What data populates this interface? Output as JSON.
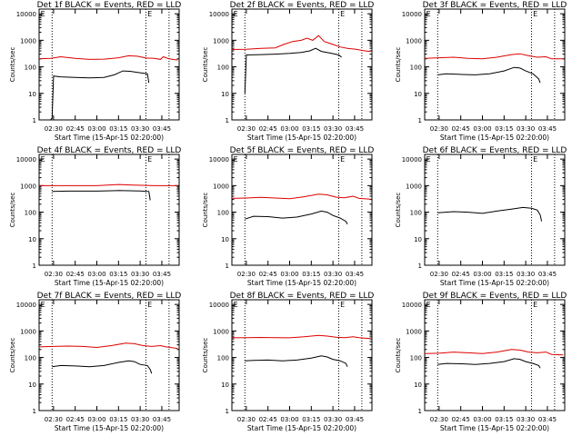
{
  "figure": {
    "xticks": [
      "02:30",
      "02:45",
      "03:00",
      "03:15",
      "03:30",
      "03:45"
    ],
    "xlabel": "Start Time (15-Apr-15 02:20:00)",
    "ylabel": "Counts/sec",
    "yticks": [
      "1",
      "10",
      "100",
      "1000",
      "10000"
    ],
    "marker": "E",
    "colors": {
      "events": "#000000",
      "lld": "#dd0000"
    }
  },
  "chart_data": [
    {
      "type": "line",
      "title": "Det 1f BLACK = Events, RED = LLD",
      "xlabel": "Start Time (15-Apr-15 02:20:00)",
      "ylabel": "Counts/sec",
      "x_unit": "minutes after 02:20",
      "xlim": [
        0,
        97
      ],
      "ylim": [
        1,
        15000
      ],
      "ylog": true,
      "dotted_vlines": [
        9,
        74,
        90
      ],
      "series": [
        {
          "name": "LLD",
          "color": "#dd0000",
          "points": [
            [
              0,
              200
            ],
            [
              8,
              210
            ],
            [
              15,
              240
            ],
            [
              25,
              210
            ],
            [
              35,
              190
            ],
            [
              45,
              195
            ],
            [
              55,
              220
            ],
            [
              62,
              260
            ],
            [
              68,
              250
            ],
            [
              74,
              215
            ],
            [
              80,
              210
            ],
            [
              84,
              190
            ],
            [
              86,
              240
            ],
            [
              90,
              200
            ],
            [
              96,
              180
            ]
          ]
        },
        {
          "name": "Events",
          "color": "#000000",
          "points": [
            [
              8,
              1
            ],
            [
              9,
              1.2
            ],
            [
              10,
              45
            ],
            [
              15,
              42
            ],
            [
              25,
              40
            ],
            [
              35,
              38
            ],
            [
              45,
              40
            ],
            [
              52,
              50
            ],
            [
              58,
              70
            ],
            [
              63,
              68
            ],
            [
              70,
              60
            ],
            [
              75,
              55
            ],
            [
              76,
              25
            ]
          ]
        }
      ]
    },
    {
      "type": "line",
      "title": "Det 2f BLACK = Events, RED = LLD",
      "xlabel": "Start Time (15-Apr-15 02:20:00)",
      "ylabel": "Counts/sec",
      "x_unit": "minutes after 02:20",
      "xlim": [
        0,
        97
      ],
      "ylim": [
        1,
        15000
      ],
      "ylog": true,
      "dotted_vlines": [
        9,
        74,
        90
      ],
      "series": [
        {
          "name": "LLD",
          "color": "#dd0000",
          "points": [
            [
              0,
              450
            ],
            [
              10,
              460
            ],
            [
              20,
              500
            ],
            [
              30,
              520
            ],
            [
              36,
              700
            ],
            [
              42,
              900
            ],
            [
              48,
              1000
            ],
            [
              52,
              1200
            ],
            [
              56,
              1000
            ],
            [
              60,
              1500
            ],
            [
              64,
              900
            ],
            [
              70,
              700
            ],
            [
              75,
              560
            ],
            [
              80,
              500
            ],
            [
              86,
              460
            ],
            [
              92,
              400
            ],
            [
              96,
              380
            ]
          ]
        },
        {
          "name": "Events",
          "color": "#000000",
          "points": [
            [
              9,
              10
            ],
            [
              10,
              280
            ],
            [
              20,
              290
            ],
            [
              30,
              300
            ],
            [
              40,
              320
            ],
            [
              48,
              350
            ],
            [
              54,
              400
            ],
            [
              58,
              500
            ],
            [
              62,
              380
            ],
            [
              68,
              330
            ],
            [
              74,
              280
            ],
            [
              76,
              230
            ]
          ]
        }
      ]
    },
    {
      "type": "line",
      "title": "Det 3f BLACK = Events, RED = LLD",
      "xlabel": "Start Time (15-Apr-15 02:20:00)",
      "ylabel": "Counts/sec",
      "x_unit": "minutes after 02:20",
      "xlim": [
        0,
        97
      ],
      "ylim": [
        1,
        15000
      ],
      "ylog": true,
      "dotted_vlines": [
        9,
        74,
        90
      ],
      "series": [
        {
          "name": "LLD",
          "color": "#dd0000",
          "points": [
            [
              0,
              210
            ],
            [
              10,
              220
            ],
            [
              20,
              230
            ],
            [
              30,
              210
            ],
            [
              40,
              200
            ],
            [
              50,
              230
            ],
            [
              60,
              290
            ],
            [
              66,
              310
            ],
            [
              72,
              260
            ],
            [
              78,
              230
            ],
            [
              84,
              240
            ],
            [
              88,
              200
            ],
            [
              96,
              200
            ]
          ]
        },
        {
          "name": "Events",
          "color": "#000000",
          "points": [
            [
              9,
              50
            ],
            [
              15,
              55
            ],
            [
              25,
              52
            ],
            [
              35,
              50
            ],
            [
              45,
              55
            ],
            [
              55,
              70
            ],
            [
              62,
              95
            ],
            [
              66,
              90
            ],
            [
              70,
              70
            ],
            [
              75,
              55
            ],
            [
              79,
              35
            ],
            [
              80,
              25
            ]
          ]
        }
      ]
    },
    {
      "type": "line",
      "title": "Det 4f BLACK = Events, RED = LLD",
      "xlabel": "Start Time (15-Apr-15 02:20:00)",
      "ylabel": "Counts/sec",
      "x_unit": "minutes after 02:20",
      "xlim": [
        0,
        97
      ],
      "ylim": [
        1,
        15000
      ],
      "ylog": true,
      "dotted_vlines": [
        9,
        74,
        90
      ],
      "series": [
        {
          "name": "LLD",
          "color": "#dd0000",
          "points": [
            [
              0,
              1000
            ],
            [
              20,
              1000
            ],
            [
              40,
              1000
            ],
            [
              55,
              1100
            ],
            [
              65,
              1050
            ],
            [
              80,
              1000
            ],
            [
              96,
              1000
            ]
          ]
        },
        {
          "name": "Events",
          "color": "#000000",
          "points": [
            [
              9,
              600
            ],
            [
              20,
              620
            ],
            [
              40,
              620
            ],
            [
              55,
              650
            ],
            [
              70,
              630
            ],
            [
              76,
              600
            ],
            [
              77,
              280
            ]
          ]
        }
      ]
    },
    {
      "type": "line",
      "title": "Det 5f BLACK = Events, RED = LLD",
      "xlabel": "Start Time (15-Apr-15 02:20:00)",
      "ylabel": "Counts/sec",
      "x_unit": "minutes after 02:20",
      "xlim": [
        0,
        97
      ],
      "ylim": [
        1,
        15000
      ],
      "ylog": true,
      "dotted_vlines": [
        9,
        74,
        90
      ],
      "series": [
        {
          "name": "LLD",
          "color": "#dd0000",
          "points": [
            [
              0,
              330
            ],
            [
              10,
              340
            ],
            [
              20,
              360
            ],
            [
              30,
              340
            ],
            [
              40,
              320
            ],
            [
              50,
              380
            ],
            [
              60,
              480
            ],
            [
              66,
              450
            ],
            [
              72,
              370
            ],
            [
              78,
              350
            ],
            [
              84,
              400
            ],
            [
              88,
              330
            ],
            [
              96,
              310
            ]
          ]
        },
        {
          "name": "Events",
          "color": "#000000",
          "points": [
            [
              9,
              55
            ],
            [
              15,
              70
            ],
            [
              25,
              68
            ],
            [
              35,
              60
            ],
            [
              45,
              65
            ],
            [
              55,
              85
            ],
            [
              62,
              110
            ],
            [
              66,
              100
            ],
            [
              70,
              75
            ],
            [
              75,
              60
            ],
            [
              79,
              45
            ],
            [
              80,
              35
            ]
          ]
        }
      ]
    },
    {
      "type": "line",
      "title": "Det 6f BLACK = Events, RED = LLD",
      "xlabel": "Start Time (15-Apr-15 02:20:00)",
      "ylabel": "Counts/sec",
      "x_unit": "minutes after 02:20",
      "xlim": [
        0,
        97
      ],
      "ylim": [
        1,
        15000
      ],
      "ylog": true,
      "dotted_vlines": [
        9,
        74,
        90
      ],
      "series": [
        {
          "name": "Events",
          "color": "#000000",
          "points": [
            [
              9,
              95
            ],
            [
              20,
              105
            ],
            [
              30,
              100
            ],
            [
              40,
              90
            ],
            [
              50,
              110
            ],
            [
              60,
              130
            ],
            [
              68,
              150
            ],
            [
              74,
              140
            ],
            [
              78,
              120
            ],
            [
              80,
              80
            ],
            [
              81,
              45
            ]
          ]
        }
      ]
    },
    {
      "type": "line",
      "title": "Det 7f BLACK = Events, RED = LLD",
      "xlabel": "Start Time (15-Apr-15 02:20:00)",
      "ylabel": "Counts/sec",
      "x_unit": "minutes after 02:20",
      "xlim": [
        0,
        97
      ],
      "ylim": [
        1,
        15000
      ],
      "ylog": true,
      "dotted_vlines": [
        9,
        74,
        90
      ],
      "series": [
        {
          "name": "LLD",
          "color": "#dd0000",
          "points": [
            [
              0,
              250
            ],
            [
              10,
              260
            ],
            [
              20,
              270
            ],
            [
              30,
              260
            ],
            [
              40,
              240
            ],
            [
              50,
              280
            ],
            [
              60,
              350
            ],
            [
              66,
              330
            ],
            [
              72,
              280
            ],
            [
              78,
              260
            ],
            [
              84,
              280
            ],
            [
              88,
              250
            ],
            [
              96,
              220
            ]
          ]
        },
        {
          "name": "Events",
          "color": "#000000",
          "points": [
            [
              9,
              45
            ],
            [
              15,
              50
            ],
            [
              25,
              48
            ],
            [
              35,
              45
            ],
            [
              45,
              50
            ],
            [
              55,
              65
            ],
            [
              62,
              75
            ],
            [
              66,
              70
            ],
            [
              70,
              55
            ],
            [
              75,
              50
            ],
            [
              77,
              35
            ],
            [
              78,
              25
            ]
          ]
        }
      ]
    },
    {
      "type": "line",
      "title": "Det 8f BLACK = Events, RED = LLD",
      "xlabel": "Start Time (15-Apr-15 02:20:00)",
      "ylabel": "Counts/sec",
      "x_unit": "minutes after 02:20",
      "xlim": [
        0,
        97
      ],
      "ylim": [
        1,
        15000
      ],
      "ylog": true,
      "dotted_vlines": [
        9,
        74,
        90
      ],
      "series": [
        {
          "name": "LLD",
          "color": "#dd0000",
          "points": [
            [
              0,
              550
            ],
            [
              10,
              560
            ],
            [
              20,
              570
            ],
            [
              30,
              560
            ],
            [
              40,
              550
            ],
            [
              50,
              600
            ],
            [
              60,
              680
            ],
            [
              66,
              640
            ],
            [
              72,
              580
            ],
            [
              78,
              560
            ],
            [
              84,
              600
            ],
            [
              88,
              560
            ],
            [
              96,
              520
            ]
          ]
        },
        {
          "name": "Events",
          "color": "#000000",
          "points": [
            [
              9,
              75
            ],
            [
              15,
              78
            ],
            [
              25,
              80
            ],
            [
              35,
              75
            ],
            [
              45,
              80
            ],
            [
              55,
              95
            ],
            [
              62,
              115
            ],
            [
              66,
              105
            ],
            [
              70,
              85
            ],
            [
              75,
              75
            ],
            [
              79,
              60
            ],
            [
              80,
              45
            ]
          ]
        }
      ]
    },
    {
      "type": "line",
      "title": "Det 9f BLACK = Events, RED = LLD",
      "xlabel": "Start Time (15-Apr-15 02:20:00)",
      "ylabel": "Counts/sec",
      "x_unit": "minutes after 02:20",
      "xlim": [
        0,
        97
      ],
      "ylim": [
        1,
        15000
      ],
      "ylog": true,
      "dotted_vlines": [
        9,
        74,
        90
      ],
      "series": [
        {
          "name": "LLD",
          "color": "#dd0000",
          "points": [
            [
              0,
              140
            ],
            [
              10,
              145
            ],
            [
              20,
              160
            ],
            [
              30,
              150
            ],
            [
              40,
              140
            ],
            [
              50,
              160
            ],
            [
              60,
              200
            ],
            [
              66,
              190
            ],
            [
              72,
              160
            ],
            [
              78,
              150
            ],
            [
              84,
              160
            ],
            [
              88,
              130
            ],
            [
              96,
              125
            ]
          ]
        },
        {
          "name": "Events",
          "color": "#000000",
          "points": [
            [
              9,
              55
            ],
            [
              15,
              60
            ],
            [
              25,
              58
            ],
            [
              35,
              55
            ],
            [
              45,
              60
            ],
            [
              55,
              70
            ],
            [
              62,
              90
            ],
            [
              66,
              85
            ],
            [
              70,
              70
            ],
            [
              75,
              60
            ],
            [
              79,
              50
            ],
            [
              80,
              40
            ]
          ]
        }
      ]
    }
  ]
}
